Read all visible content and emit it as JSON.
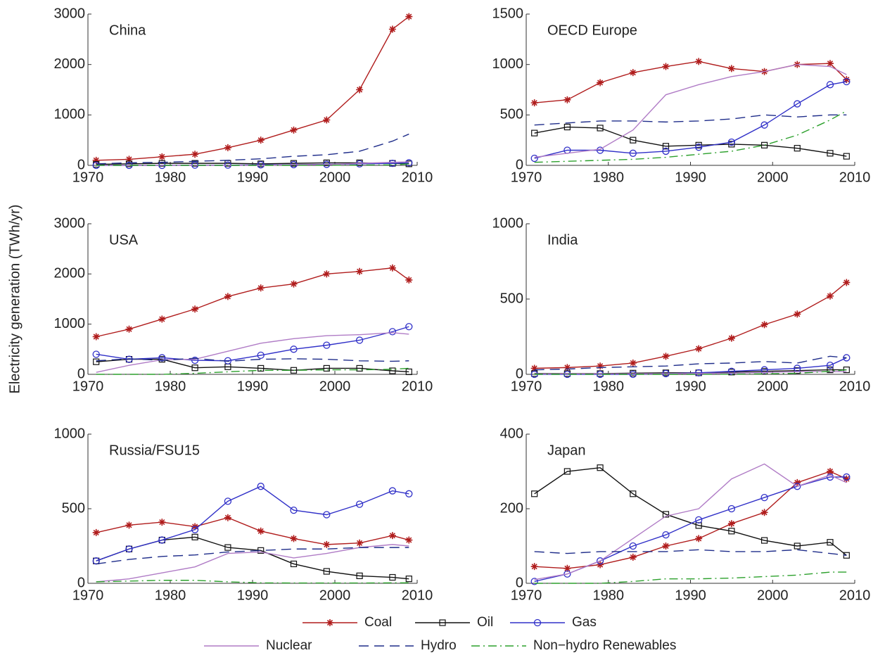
{
  "ylabel": "Electricity generation (TWh/yr)",
  "chart_data": [
    {
      "type": "line",
      "title": "China",
      "x": [
        1971,
        1975,
        1979,
        1983,
        1987,
        1991,
        1995,
        1999,
        2003,
        2007,
        2009
      ],
      "xlim": [
        1970,
        2010
      ],
      "xticks": [
        1970,
        1980,
        1990,
        2000,
        2010
      ],
      "ylim": [
        0,
        3000
      ],
      "yticks": [
        0,
        1000,
        2000,
        3000
      ],
      "series": [
        {
          "name": "Coal",
          "color": "#b01c1c",
          "marker": "star",
          "dash": "solid",
          "values": [
            100,
            120,
            170,
            220,
            350,
            500,
            700,
            900,
            1500,
            2700,
            2950
          ]
        },
        {
          "name": "Oil",
          "color": "#111111",
          "marker": "square",
          "dash": "solid",
          "values": [
            20,
            30,
            40,
            40,
            40,
            30,
            40,
            50,
            50,
            40,
            30
          ]
        },
        {
          "name": "Gas",
          "color": "#3030c8",
          "marker": "circle",
          "dash": "solid",
          "values": [
            0,
            0,
            0,
            5,
            5,
            10,
            15,
            20,
            30,
            40,
            50
          ]
        },
        {
          "name": "Nuclear",
          "color": "#b07cc6",
          "marker": "none",
          "dash": "solid",
          "values": [
            0,
            0,
            0,
            0,
            0,
            0,
            15,
            15,
            40,
            60,
            70
          ]
        },
        {
          "name": "Hydro",
          "color": "#1f2d8a",
          "marker": "none",
          "dash": "dashed",
          "values": [
            30,
            50,
            60,
            80,
            100,
            130,
            180,
            210,
            280,
            480,
            620
          ]
        },
        {
          "name": "Non−hydro Renewables",
          "color": "#2ca02c",
          "marker": "none",
          "dash": "dashdot",
          "values": [
            0,
            0,
            0,
            0,
            0,
            0,
            0,
            2,
            5,
            10,
            30
          ]
        }
      ]
    },
    {
      "type": "line",
      "title": "OECD Europe",
      "x": [
        1971,
        1975,
        1979,
        1983,
        1987,
        1991,
        1995,
        1999,
        2003,
        2007,
        2009
      ],
      "xlim": [
        1970,
        2010
      ],
      "xticks": [
        1970,
        1980,
        1990,
        2000,
        2010
      ],
      "ylim": [
        0,
        1500
      ],
      "yticks": [
        0,
        500,
        1000,
        1500
      ],
      "series": [
        {
          "name": "Coal",
          "color": "#b01c1c",
          "marker": "star",
          "dash": "solid",
          "values": [
            620,
            650,
            820,
            920,
            980,
            1030,
            960,
            930,
            1000,
            1010,
            850
          ]
        },
        {
          "name": "Oil",
          "color": "#111111",
          "marker": "square",
          "dash": "solid",
          "values": [
            320,
            380,
            370,
            250,
            190,
            200,
            210,
            200,
            170,
            120,
            90
          ]
        },
        {
          "name": "Gas",
          "color": "#3030c8",
          "marker": "circle",
          "dash": "solid",
          "values": [
            70,
            150,
            150,
            120,
            140,
            180,
            230,
            400,
            610,
            800,
            830
          ]
        },
        {
          "name": "Nuclear",
          "color": "#b07cc6",
          "marker": "none",
          "dash": "solid",
          "values": [
            80,
            120,
            160,
            350,
            700,
            800,
            880,
            930,
            1000,
            980,
            900
          ]
        },
        {
          "name": "Hydro",
          "color": "#1f2d8a",
          "marker": "none",
          "dash": "dashed",
          "values": [
            400,
            420,
            440,
            440,
            430,
            440,
            460,
            500,
            480,
            500,
            500
          ]
        },
        {
          "name": "Non−hydro Renewables",
          "color": "#2ca02c",
          "marker": "none",
          "dash": "dashdot",
          "values": [
            30,
            40,
            50,
            60,
            80,
            110,
            140,
            200,
            300,
            450,
            540
          ]
        }
      ]
    },
    {
      "type": "line",
      "title": "USA",
      "x": [
        1971,
        1975,
        1979,
        1983,
        1987,
        1991,
        1995,
        1999,
        2003,
        2007,
        2009
      ],
      "xlim": [
        1970,
        2010
      ],
      "xticks": [
        1970,
        1980,
        1990,
        2000,
        2010
      ],
      "ylim": [
        0,
        3000
      ],
      "yticks": [
        0,
        1000,
        2000,
        3000
      ],
      "series": [
        {
          "name": "Coal",
          "color": "#b01c1c",
          "marker": "star",
          "dash": "solid",
          "values": [
            750,
            900,
            1100,
            1300,
            1550,
            1720,
            1800,
            2000,
            2050,
            2120,
            1880
          ]
        },
        {
          "name": "Oil",
          "color": "#111111",
          "marker": "square",
          "dash": "solid",
          "values": [
            250,
            300,
            300,
            130,
            150,
            120,
            80,
            120,
            120,
            70,
            50
          ]
        },
        {
          "name": "Gas",
          "color": "#3030c8",
          "marker": "circle",
          "dash": "solid",
          "values": [
            400,
            300,
            330,
            280,
            270,
            380,
            500,
            580,
            680,
            850,
            950
          ]
        },
        {
          "name": "Nuclear",
          "color": "#b07cc6",
          "marker": "none",
          "dash": "solid",
          "values": [
            40,
            180,
            290,
            300,
            460,
            620,
            710,
            770,
            790,
            830,
            800
          ]
        },
        {
          "name": "Hydro",
          "color": "#1f2d8a",
          "marker": "none",
          "dash": "dashed",
          "values": [
            270,
            310,
            280,
            320,
            260,
            300,
            310,
            300,
            270,
            260,
            270
          ]
        },
        {
          "name": "Non−hydro Renewables",
          "color": "#2ca02c",
          "marker": "none",
          "dash": "dashdot",
          "values": [
            0,
            0,
            0,
            20,
            50,
            80,
            80,
            90,
            90,
            100,
            120
          ]
        }
      ]
    },
    {
      "type": "line",
      "title": "India",
      "x": [
        1971,
        1975,
        1979,
        1983,
        1987,
        1991,
        1995,
        1999,
        2003,
        2007,
        2009
      ],
      "xlim": [
        1970,
        2010
      ],
      "xticks": [
        1970,
        1980,
        1990,
        2000,
        2010
      ],
      "ylim": [
        0,
        1000
      ],
      "yticks": [
        0,
        500,
        1000
      ],
      "series": [
        {
          "name": "Coal",
          "color": "#b01c1c",
          "marker": "star",
          "dash": "solid",
          "values": [
            40,
            45,
            55,
            75,
            120,
            170,
            240,
            330,
            400,
            520,
            610
          ]
        },
        {
          "name": "Oil",
          "color": "#111111",
          "marker": "square",
          "dash": "solid",
          "values": [
            5,
            5,
            5,
            8,
            10,
            10,
            15,
            20,
            25,
            30,
            30
          ]
        },
        {
          "name": "Gas",
          "color": "#3030c8",
          "marker": "circle",
          "dash": "solid",
          "values": [
            0,
            0,
            0,
            0,
            5,
            10,
            20,
            30,
            40,
            60,
            110
          ]
        },
        {
          "name": "Nuclear",
          "color": "#b07cc6",
          "marker": "none",
          "dash": "solid",
          "values": [
            2,
            3,
            3,
            4,
            5,
            6,
            8,
            12,
            18,
            17,
            18
          ]
        },
        {
          "name": "Hydro",
          "color": "#1f2d8a",
          "marker": "none",
          "dash": "dashed",
          "values": [
            30,
            35,
            45,
            50,
            55,
            70,
            75,
            85,
            75,
            120,
            110
          ]
        },
        {
          "name": "Non−hydro Renewables",
          "color": "#2ca02c",
          "marker": "none",
          "dash": "dashdot",
          "values": [
            0,
            0,
            0,
            0,
            0,
            0,
            1,
            3,
            7,
            20,
            30
          ]
        }
      ]
    },
    {
      "type": "line",
      "title": "Russia/FSU15",
      "x": [
        1971,
        1975,
        1979,
        1983,
        1987,
        1991,
        1995,
        1999,
        2003,
        2007,
        2009
      ],
      "xlim": [
        1970,
        2010
      ],
      "xticks": [
        1970,
        1980,
        1990,
        2000,
        2010
      ],
      "ylim": [
        0,
        1000
      ],
      "yticks": [
        0,
        500,
        1000
      ],
      "series": [
        {
          "name": "Coal",
          "color": "#b01c1c",
          "marker": "star",
          "dash": "solid",
          "values": [
            340,
            390,
            410,
            380,
            440,
            350,
            300,
            260,
            270,
            320,
            290
          ]
        },
        {
          "name": "Oil",
          "color": "#111111",
          "marker": "square",
          "dash": "solid",
          "values": [
            150,
            230,
            290,
            310,
            240,
            220,
            130,
            80,
            50,
            40,
            30
          ]
        },
        {
          "name": "Gas",
          "color": "#3030c8",
          "marker": "circle",
          "dash": "solid",
          "values": [
            150,
            230,
            290,
            360,
            550,
            650,
            490,
            460,
            530,
            620,
            600
          ]
        },
        {
          "name": "Nuclear",
          "color": "#b07cc6",
          "marker": "none",
          "dash": "solid",
          "values": [
            10,
            30,
            70,
            110,
            200,
            210,
            170,
            200,
            240,
            260,
            250
          ]
        },
        {
          "name": "Hydro",
          "color": "#1f2d8a",
          "marker": "none",
          "dash": "dashed",
          "values": [
            130,
            160,
            180,
            190,
            210,
            220,
            230,
            230,
            240,
            240,
            240
          ]
        },
        {
          "name": "Non−hydro Renewables",
          "color": "#2ca02c",
          "marker": "none",
          "dash": "dashdot",
          "values": [
            10,
            15,
            20,
            20,
            10,
            3,
            2,
            2,
            2,
            3,
            3
          ]
        }
      ]
    },
    {
      "type": "line",
      "title": "Japan",
      "x": [
        1971,
        1975,
        1979,
        1983,
        1987,
        1991,
        1995,
        1999,
        2003,
        2007,
        2009
      ],
      "xlim": [
        1970,
        2010
      ],
      "xticks": [
        1970,
        1980,
        1990,
        2000,
        2010
      ],
      "ylim": [
        0,
        400
      ],
      "yticks": [
        0,
        200,
        400
      ],
      "series": [
        {
          "name": "Coal",
          "color": "#b01c1c",
          "marker": "star",
          "dash": "solid",
          "values": [
            45,
            40,
            50,
            70,
            100,
            120,
            160,
            190,
            270,
            300,
            280
          ]
        },
        {
          "name": "Oil",
          "color": "#111111",
          "marker": "square",
          "dash": "solid",
          "values": [
            240,
            300,
            310,
            240,
            185,
            155,
            140,
            115,
            100,
            110,
            75
          ]
        },
        {
          "name": "Gas",
          "color": "#3030c8",
          "marker": "circle",
          "dash": "solid",
          "values": [
            5,
            25,
            60,
            100,
            130,
            170,
            200,
            230,
            260,
            285,
            285
          ]
        },
        {
          "name": "Nuclear",
          "color": "#b07cc6",
          "marker": "none",
          "dash": "solid",
          "values": [
            10,
            25,
            60,
            120,
            180,
            200,
            280,
            320,
            260,
            290,
            270
          ]
        },
        {
          "name": "Hydro",
          "color": "#1f2d8a",
          "marker": "none",
          "dash": "dashed",
          "values": [
            85,
            80,
            85,
            85,
            85,
            90,
            85,
            85,
            90,
            80,
            75
          ]
        },
        {
          "name": "Non−hydro Renewables",
          "color": "#2ca02c",
          "marker": "none",
          "dash": "dashdot",
          "values": [
            0,
            0,
            0,
            5,
            12,
            12,
            14,
            18,
            22,
            30,
            30
          ]
        }
      ]
    }
  ]
}
